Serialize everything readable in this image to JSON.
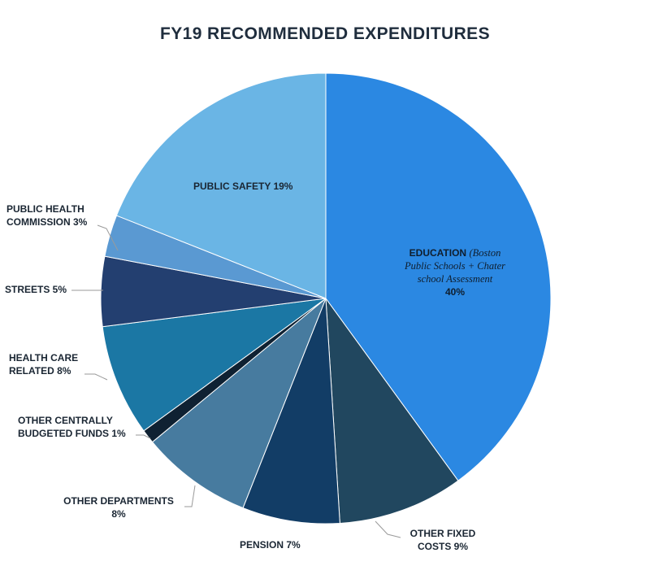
{
  "chart_data": {
    "type": "pie",
    "title": "FY19 RECOMMENDED EXPENDITURES",
    "slices": [
      {
        "label": "EDUCATION",
        "note": "(Boston Public Schools + Chater school Assessment",
        "value_label": "40%",
        "value": 40,
        "color": "#2b88e2"
      },
      {
        "label": "OTHER FIXED COSTS",
        "value_label": "9%",
        "value": 9,
        "color": "#21475f"
      },
      {
        "label": "PENSION",
        "value_label": "7%",
        "value": 7,
        "color": "#123d66"
      },
      {
        "label": "OTHER DEPARTMENTS",
        "value_label": "8%",
        "value": 8,
        "color": "#477b9f"
      },
      {
        "label": "OTHER CENTRALLY BUDGETED FUNDS",
        "value_label": "1%",
        "value": 1,
        "color": "#0f2132"
      },
      {
        "label": "HEALTH CARE RELATED",
        "value_label": "8%",
        "value": 8,
        "color": "#1b77a4"
      },
      {
        "label": "STREETS",
        "value_label": "5%",
        "value": 5,
        "color": "#233f70"
      },
      {
        "label": "PUBLIC HEALTH COMMISSION",
        "value_label": "3%",
        "value": 3,
        "color": "#5a99d2"
      },
      {
        "label": "PUBLIC SAFETY",
        "value_label": "19%",
        "value": 19,
        "color": "#6ab5e5"
      }
    ]
  },
  "labels": {
    "education_main": "EDUCATION",
    "education_note_1": "(Boston",
    "education_note_2": "Public Schools + Chater",
    "education_note_3": "school Assessment",
    "education_pct": "40%",
    "public_safety": "PUBLIC SAFETY 19%",
    "public_health_1": "PUBLIC HEALTH",
    "public_health_2": "COMMISSION 3%",
    "streets": "STREETS 5%",
    "health_care_1": "HEALTH CARE",
    "health_care_2": "RELATED 8%",
    "other_central_1": "OTHER CENTRALLY",
    "other_central_2": "BUDGETED FUNDS 1%",
    "other_depts_1": "OTHER DEPARTMENTS",
    "other_depts_2": "8%",
    "pension": "PENSION 7%",
    "other_fixed_1": "OTHER FIXED",
    "other_fixed_2": "COSTS 9%"
  }
}
